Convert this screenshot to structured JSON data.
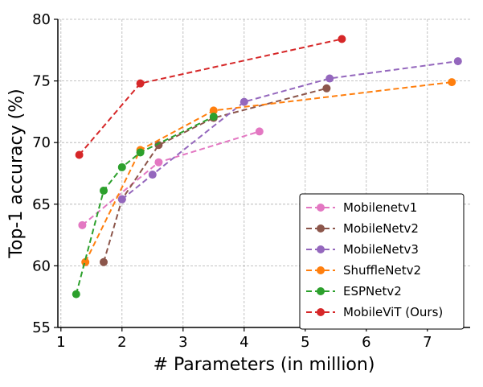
{
  "chart_data": {
    "type": "line",
    "title": "",
    "xlabel": "# Parameters (in million)",
    "ylabel": "Top-1 accuracy (%)",
    "xlim": [
      0.95,
      7.7
    ],
    "ylim": [
      55,
      80
    ],
    "xticks": [
      1,
      2,
      3,
      4,
      5,
      6,
      7
    ],
    "yticks": [
      55,
      60,
      65,
      70,
      75,
      80
    ],
    "grid": true,
    "legend_position": "lower-right",
    "series": [
      {
        "name": "Mobilenetv1",
        "color": "#e377c2",
        "x": [
          1.35,
          2.6,
          4.25
        ],
        "y": [
          63.3,
          68.4,
          70.9
        ]
      },
      {
        "name": "MobileNetv2",
        "color": "#8c564b",
        "x": [
          1.7,
          2.0,
          2.6,
          3.5,
          5.35
        ],
        "y": [
          60.3,
          65.4,
          69.8,
          72.0,
          74.4
        ]
      },
      {
        "name": "MobileNetv3",
        "color": "#9467bd",
        "x": [
          2.0,
          2.5,
          4.0,
          5.4,
          7.5
        ],
        "y": [
          65.4,
          67.4,
          73.3,
          75.2,
          76.6
        ]
      },
      {
        "name": "ShuffleNetv2",
        "color": "#ff7f0e",
        "x": [
          1.4,
          2.3,
          3.5,
          7.4
        ],
        "y": [
          60.3,
          69.4,
          72.6,
          74.9
        ]
      },
      {
        "name": "ESPNetv2",
        "color": "#2ca02c",
        "x": [
          1.25,
          1.7,
          2.0,
          2.3,
          3.5
        ],
        "y": [
          57.7,
          66.1,
          68.0,
          69.2,
          72.1
        ]
      },
      {
        "name": "MobileViT (Ours)",
        "color": "#d62728",
        "x": [
          1.3,
          2.3,
          5.6
        ],
        "y": [
          69.0,
          74.8,
          78.4
        ]
      }
    ]
  }
}
